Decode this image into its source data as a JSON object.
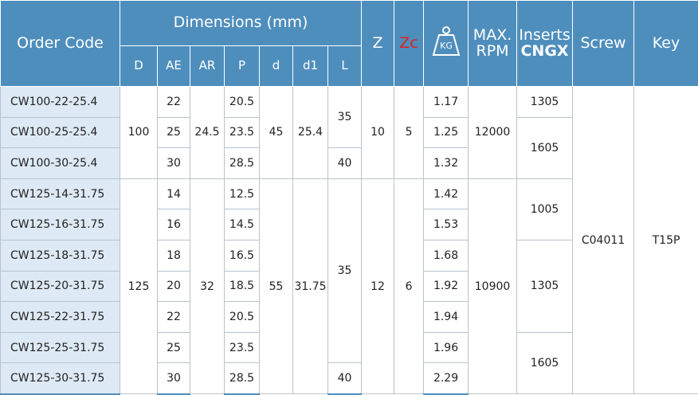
{
  "header": {
    "order_code": "Order Code",
    "dimensions": "Dimensions (mm)",
    "sub": [
      "D",
      "AE",
      "AR",
      "P",
      "d",
      "d1",
      "L"
    ],
    "z": "Z",
    "zc": "Zc",
    "weight": "KG",
    "max_rpm": [
      "MAX.",
      "RPM"
    ],
    "inserts": [
      "Inserts",
      "CNGX"
    ],
    "screw": "Screw",
    "key": "Key"
  },
  "table": {
    "rows": [
      [
        "CW100-22-25.4",
        "100",
        "22",
        "24.5",
        "20.5",
        "45",
        "25.4",
        "35",
        "10",
        "5",
        "1.17",
        "12000",
        "1305",
        "C04011",
        "T15P"
      ],
      [
        "CW100-25-25.4",
        "25",
        "23.5",
        "1.25",
        "1605"
      ],
      [
        "CW100-30-25.4",
        "30",
        "28.5",
        "40",
        "1.32"
      ],
      [
        "CW125-14-31.75",
        "125",
        "14",
        "32",
        "12.5",
        "55",
        "31.75",
        "35",
        "12",
        "6",
        "1.42",
        "10900",
        "1005"
      ],
      [
        "CW125-16-31.75",
        "16",
        "14.5",
        "1.53"
      ],
      [
        "CW125-18-31.75",
        "18",
        "16.5",
        "1.68",
        "1305"
      ],
      [
        "CW125-20-31.75",
        "20",
        "18.5",
        "1.92"
      ],
      [
        "CW125-22-31.75",
        "22",
        "20.5",
        "1.94"
      ],
      [
        "CW125-25-31.75",
        "25",
        "23.5",
        "1.96",
        "1605"
      ],
      [
        "CW125-30-31.75",
        "30",
        "28.5",
        "40",
        "2.29"
      ]
    ]
  }
}
